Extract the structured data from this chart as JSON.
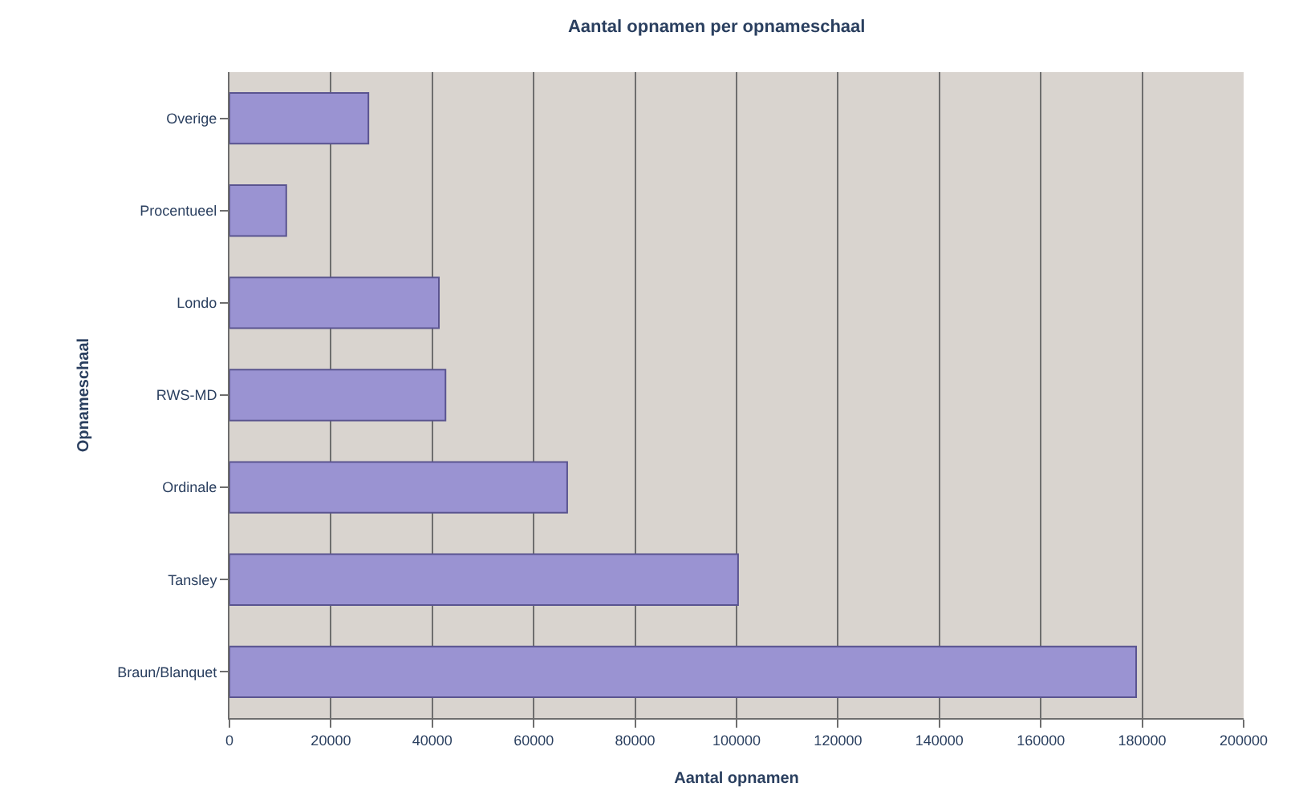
{
  "chart_data": {
    "type": "bar",
    "orientation": "horizontal",
    "title": "Aantal opnamen per opnameschaal",
    "xlabel": "Aantal opnamen",
    "ylabel": "Opnameschaal",
    "categories": [
      "Overige",
      "Procentueel",
      "Londo",
      "RWS-MD",
      "Ordinale",
      "Tansley",
      "Braun/Blanquet"
    ],
    "values": [
      27400,
      11200,
      41300,
      42600,
      66600,
      100300,
      178800
    ],
    "color": "#9a93d2",
    "xlim": [
      0,
      200000
    ],
    "xticks": [
      0,
      20000,
      40000,
      60000,
      80000,
      100000,
      120000,
      140000,
      160000,
      180000,
      200000
    ],
    "grid": "x",
    "legend": false
  }
}
